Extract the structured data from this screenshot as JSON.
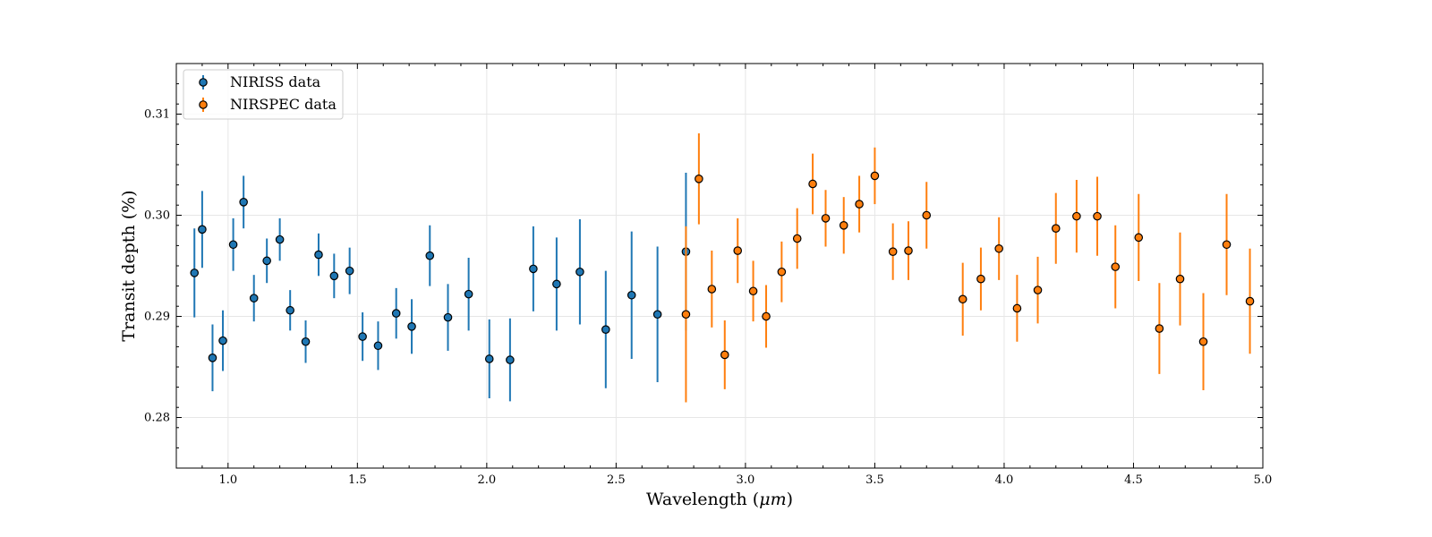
{
  "chart_data": {
    "type": "scatter",
    "xlabel": "Wavelength (μm)",
    "xlabel_prefix": "Wavelength (",
    "xlabel_unit": "μm",
    "xlabel_suffix": ")",
    "ylabel": "Transit depth (%)",
    "xlim": [
      0.8,
      5.0
    ],
    "ylim": [
      0.275,
      0.315
    ],
    "xticks": [
      1.0,
      1.5,
      2.0,
      2.5,
      3.0,
      3.5,
      4.0,
      4.5,
      5.0
    ],
    "xtick_labels": [
      "1.0",
      "1.5",
      "2.0",
      "2.5",
      "3.0",
      "3.5",
      "4.0",
      "4.5",
      "5.0"
    ],
    "yticks": [
      0.28,
      0.29,
      0.3,
      0.31
    ],
    "ytick_labels": [
      "0.28",
      "0.29",
      "0.30",
      "0.31"
    ],
    "grid": true,
    "legend_position": "top-left",
    "series": [
      {
        "name": "NIRISS data",
        "color": "#1f77b4",
        "points": [
          {
            "x": 0.87,
            "y": 0.2943,
            "err": 0.0044
          },
          {
            "x": 0.9,
            "y": 0.2986,
            "err": 0.0038
          },
          {
            "x": 0.94,
            "y": 0.2859,
            "err": 0.0033
          },
          {
            "x": 0.98,
            "y": 0.2876,
            "err": 0.003
          },
          {
            "x": 1.02,
            "y": 0.2971,
            "err": 0.0026
          },
          {
            "x": 1.06,
            "y": 0.3013,
            "err": 0.0026
          },
          {
            "x": 1.1,
            "y": 0.2918,
            "err": 0.0023
          },
          {
            "x": 1.15,
            "y": 0.2955,
            "err": 0.0022
          },
          {
            "x": 1.2,
            "y": 0.2976,
            "err": 0.0021
          },
          {
            "x": 1.24,
            "y": 0.2906,
            "err": 0.002
          },
          {
            "x": 1.3,
            "y": 0.2875,
            "err": 0.0021
          },
          {
            "x": 1.35,
            "y": 0.2961,
            "err": 0.0021
          },
          {
            "x": 1.41,
            "y": 0.294,
            "err": 0.0022
          },
          {
            "x": 1.47,
            "y": 0.2945,
            "err": 0.0023
          },
          {
            "x": 1.52,
            "y": 0.288,
            "err": 0.0024
          },
          {
            "x": 1.58,
            "y": 0.2871,
            "err": 0.0024
          },
          {
            "x": 1.65,
            "y": 0.2903,
            "err": 0.0025
          },
          {
            "x": 1.71,
            "y": 0.289,
            "err": 0.0027
          },
          {
            "x": 1.78,
            "y": 0.296,
            "err": 0.003
          },
          {
            "x": 1.85,
            "y": 0.2899,
            "err": 0.0033
          },
          {
            "x": 1.93,
            "y": 0.2922,
            "err": 0.0036
          },
          {
            "x": 2.01,
            "y": 0.2858,
            "err": 0.0039
          },
          {
            "x": 2.09,
            "y": 0.2857,
            "err": 0.0041
          },
          {
            "x": 2.18,
            "y": 0.2947,
            "err": 0.0042
          },
          {
            "x": 2.27,
            "y": 0.2932,
            "err": 0.0046
          },
          {
            "x": 2.36,
            "y": 0.2944,
            "err": 0.0052
          },
          {
            "x": 2.46,
            "y": 0.2887,
            "err": 0.0058
          },
          {
            "x": 2.56,
            "y": 0.2921,
            "err": 0.0063
          },
          {
            "x": 2.66,
            "y": 0.2902,
            "err": 0.0067
          },
          {
            "x": 2.77,
            "y": 0.2964,
            "err": 0.0078
          }
        ]
      },
      {
        "name": "NIRSPEC data",
        "color": "#ff7f0e",
        "points": [
          {
            "x": 2.77,
            "y": 0.2902,
            "err": 0.0087
          },
          {
            "x": 2.82,
            "y": 0.3036,
            "err": 0.0045
          },
          {
            "x": 2.87,
            "y": 0.2927,
            "err": 0.0038
          },
          {
            "x": 2.92,
            "y": 0.2862,
            "err": 0.0034
          },
          {
            "x": 2.97,
            "y": 0.2965,
            "err": 0.0032
          },
          {
            "x": 3.03,
            "y": 0.2925,
            "err": 0.003
          },
          {
            "x": 3.08,
            "y": 0.29,
            "err": 0.0031
          },
          {
            "x": 3.14,
            "y": 0.2944,
            "err": 0.003
          },
          {
            "x": 3.2,
            "y": 0.2977,
            "err": 0.003
          },
          {
            "x": 3.26,
            "y": 0.3031,
            "err": 0.003
          },
          {
            "x": 3.31,
            "y": 0.2997,
            "err": 0.0028
          },
          {
            "x": 3.38,
            "y": 0.299,
            "err": 0.0028
          },
          {
            "x": 3.44,
            "y": 0.3011,
            "err": 0.0028
          },
          {
            "x": 3.5,
            "y": 0.3039,
            "err": 0.0028
          },
          {
            "x": 3.57,
            "y": 0.2964,
            "err": 0.0028
          },
          {
            "x": 3.63,
            "y": 0.2965,
            "err": 0.0029
          },
          {
            "x": 3.7,
            "y": 0.3,
            "err": 0.0033
          },
          {
            "x": 3.84,
            "y": 0.2917,
            "err": 0.0036
          },
          {
            "x": 3.91,
            "y": 0.2937,
            "err": 0.0031
          },
          {
            "x": 3.98,
            "y": 0.2967,
            "err": 0.0031
          },
          {
            "x": 4.05,
            "y": 0.2908,
            "err": 0.0033
          },
          {
            "x": 4.13,
            "y": 0.2926,
            "err": 0.0033
          },
          {
            "x": 4.2,
            "y": 0.2987,
            "err": 0.0035
          },
          {
            "x": 4.28,
            "y": 0.2999,
            "err": 0.0036
          },
          {
            "x": 4.36,
            "y": 0.2999,
            "err": 0.0039
          },
          {
            "x": 4.43,
            "y": 0.2949,
            "err": 0.0041
          },
          {
            "x": 4.52,
            "y": 0.2978,
            "err": 0.0043
          },
          {
            "x": 4.6,
            "y": 0.2888,
            "err": 0.0045
          },
          {
            "x": 4.68,
            "y": 0.2937,
            "err": 0.0046
          },
          {
            "x": 4.77,
            "y": 0.2875,
            "err": 0.0048
          },
          {
            "x": 4.86,
            "y": 0.2971,
            "err": 0.005
          },
          {
            "x": 4.95,
            "y": 0.2915,
            "err": 0.0052
          }
        ]
      }
    ]
  }
}
